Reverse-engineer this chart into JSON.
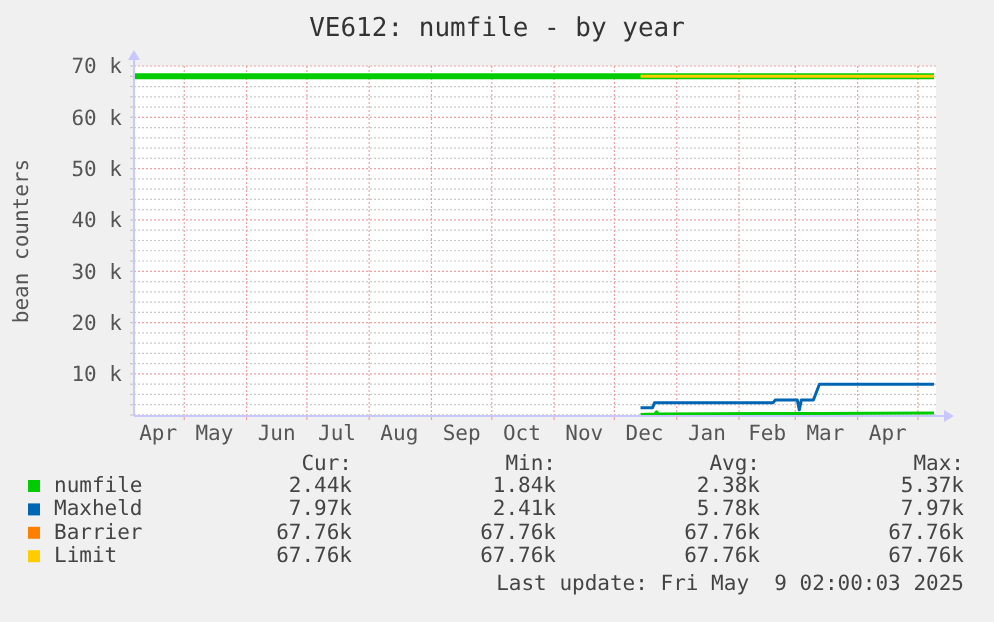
{
  "chart_data": {
    "type": "line",
    "title": "VE612: numfile - by year",
    "ylabel": "bean counters",
    "xlim": [
      "2024-04-06",
      "2025-05-10"
    ],
    "ylim": [
      1800,
      70000
    ],
    "xticks": [
      {
        "value": "2024-04-18",
        "label": "Apr"
      },
      {
        "value": "2024-05-01",
        "label": null
      },
      {
        "value": "2024-05-16",
        "label": "May"
      },
      {
        "value": "2024-06-01",
        "label": null
      },
      {
        "value": "2024-06-16",
        "label": "Jun"
      },
      {
        "value": "2024-07-01",
        "label": null
      },
      {
        "value": "2024-07-16",
        "label": "Jul"
      },
      {
        "value": "2024-08-01",
        "label": null
      },
      {
        "value": "2024-08-16",
        "label": "Aug"
      },
      {
        "value": "2024-09-01",
        "label": null
      },
      {
        "value": "2024-09-16",
        "label": "Sep"
      },
      {
        "value": "2024-10-01",
        "label": null
      },
      {
        "value": "2024-10-16",
        "label": "Oct"
      },
      {
        "value": "2024-11-01",
        "label": null
      },
      {
        "value": "2024-11-16",
        "label": "Nov"
      },
      {
        "value": "2024-12-01",
        "label": null
      },
      {
        "value": "2024-12-16",
        "label": "Dec"
      },
      {
        "value": "2025-01-01",
        "label": null
      },
      {
        "value": "2025-01-16",
        "label": "Jan"
      },
      {
        "value": "2025-02-01",
        "label": null
      },
      {
        "value": "2025-02-15",
        "label": "Feb"
      },
      {
        "value": "2025-03-01",
        "label": null
      },
      {
        "value": "2025-03-16",
        "label": "Mar"
      },
      {
        "value": "2025-04-01",
        "label": null
      },
      {
        "value": "2025-04-16",
        "label": "Apr"
      },
      {
        "value": "2025-05-01",
        "label": null
      }
    ],
    "yticks": [
      {
        "value": 2000,
        "label": null
      },
      {
        "value": 4000,
        "label": null
      },
      {
        "value": 6000,
        "label": null
      },
      {
        "value": 8000,
        "label": null
      },
      {
        "value": 10000,
        "label": "10 k"
      },
      {
        "value": 12000,
        "label": null
      },
      {
        "value": 14000,
        "label": null
      },
      {
        "value": 16000,
        "label": null
      },
      {
        "value": 18000,
        "label": null
      },
      {
        "value": 20000,
        "label": "20 k"
      },
      {
        "value": 22000,
        "label": null
      },
      {
        "value": 24000,
        "label": null
      },
      {
        "value": 26000,
        "label": null
      },
      {
        "value": 28000,
        "label": null
      },
      {
        "value": 30000,
        "label": "30 k"
      },
      {
        "value": 32000,
        "label": null
      },
      {
        "value": 34000,
        "label": null
      },
      {
        "value": 36000,
        "label": null
      },
      {
        "value": 38000,
        "label": null
      },
      {
        "value": 40000,
        "label": "40 k"
      },
      {
        "value": 42000,
        "label": null
      },
      {
        "value": 44000,
        "label": null
      },
      {
        "value": 46000,
        "label": null
      },
      {
        "value": 48000,
        "label": null
      },
      {
        "value": 50000,
        "label": "50 k"
      },
      {
        "value": 52000,
        "label": null
      },
      {
        "value": 54000,
        "label": null
      },
      {
        "value": 56000,
        "label": null
      },
      {
        "value": 58000,
        "label": null
      },
      {
        "value": 60000,
        "label": "60 k"
      },
      {
        "value": 62000,
        "label": null
      },
      {
        "value": 64000,
        "label": null
      },
      {
        "value": 66000,
        "label": null
      },
      {
        "value": 68000,
        "label": null
      },
      {
        "value": 70000,
        "label": "70 k"
      }
    ],
    "grid": true,
    "legend": "bottom",
    "series": [
      {
        "color": "#00cc00",
        "x": [
          "2024-04-06",
          "2025-05-09"
        ],
        "values": [
          68000,
          68000
        ]
      },
      {
        "name": "numfile",
        "color": "#00cc00",
        "x": [
          "2024-12-14",
          "2024-12-21",
          "2024-12-22",
          "2024-12-23",
          "2025-03-13",
          "2025-05-09"
        ],
        "values": [
          2100,
          2200,
          2600,
          2200,
          2300,
          2400
        ]
      },
      {
        "name": "Maxheld",
        "color": "#0066b3",
        "x": [
          "2024-12-14",
          "2024-12-20",
          "2024-12-21",
          "2025-02-18",
          "2025-02-19",
          "2025-03-02",
          "2025-03-03",
          "2025-03-04",
          "2025-03-10",
          "2025-03-13",
          "2025-05-09"
        ],
        "values": [
          3400,
          3400,
          4400,
          4400,
          4900,
          4900,
          3000,
          4900,
          4900,
          8000,
          8000
        ]
      },
      {
        "name": "Barrier",
        "color": "#ff8000"
      },
      {
        "name": "Limit",
        "color": "#ffcc00",
        "x": [
          "2024-12-14",
          "2025-05-09"
        ],
        "values": [
          68000,
          68000
        ]
      }
    ],
    "annotations": [
      "Cur:",
      "Min:",
      "Avg:",
      "Max:",
      "2.44k",
      "1.84k",
      "2.38k",
      "5.37k",
      "7.97k",
      "2.41k",
      "5.78k",
      "7.97k",
      "67.76k",
      "67.76k",
      "67.76k",
      "67.76k",
      "67.76k",
      "67.76k",
      "67.76k",
      "67.76k",
      "Last update: Fri May  9 02:00:03 2025"
    ]
  }
}
